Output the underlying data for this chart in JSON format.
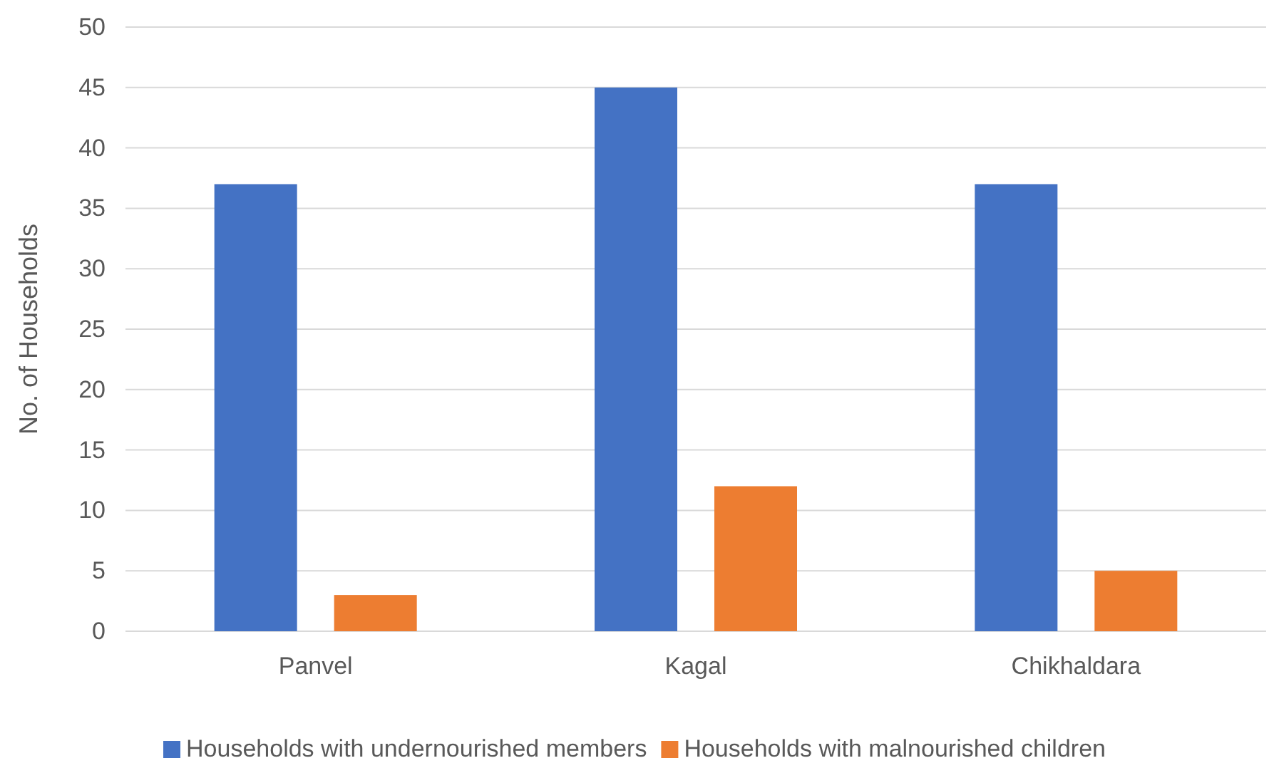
{
  "chart_data": {
    "type": "bar",
    "ylabel": "No. of Households",
    "categories": [
      "Panvel",
      "Kagal",
      "Chikhaldara"
    ],
    "series": [
      {
        "name": "Households with undernourished members",
        "color": "#4472c4",
        "values": [
          37,
          45,
          37
        ]
      },
      {
        "name": "Households with malnourished children",
        "color": "#ed7d31",
        "values": [
          3,
          12,
          5
        ]
      }
    ],
    "ylim": [
      0,
      50
    ],
    "yticks": [
      0,
      5,
      10,
      15,
      20,
      25,
      30,
      35,
      40,
      45,
      50
    ],
    "grid": "y",
    "legend": "bottom"
  }
}
